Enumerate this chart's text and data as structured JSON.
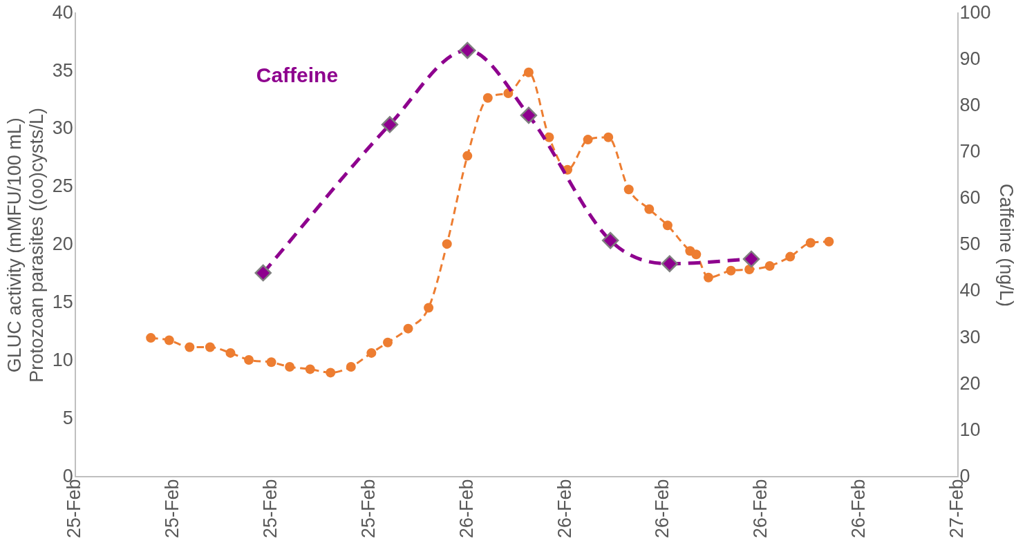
{
  "chart_data": {
    "type": "line",
    "ylabel": "GLUC activity (mMFU/100 mL)\nProtozoan parasites ((oo)cysts/L)",
    "y2label": "Caffeine (ng/L)",
    "xlim": [
      "--02-25T04:48",
      "--02-27T00:00"
    ],
    "xticks": [
      {
        "value": "--02-25T04:48",
        "label": "25-Feb"
      },
      {
        "value": "--02-25T09:36",
        "label": "25-Feb"
      },
      {
        "value": "--02-25T14:24",
        "label": "25-Feb"
      },
      {
        "value": "--02-25T19:12",
        "label": "25-Feb"
      },
      {
        "value": "--02-26T00:00",
        "label": "26-Feb"
      },
      {
        "value": "--02-26T04:48",
        "label": "26-Feb"
      },
      {
        "value": "--02-26T09:36",
        "label": "26-Feb"
      },
      {
        "value": "--02-26T14:24",
        "label": "26-Feb"
      },
      {
        "value": "--02-26T19:12",
        "label": "26-Feb"
      },
      {
        "value": "--02-27T00:00",
        "label": "27-Feb"
      }
    ],
    "ylim": [
      0,
      40
    ],
    "yticks": [
      0,
      5,
      10,
      15,
      20,
      25,
      30,
      35,
      40
    ],
    "y2lim": [
      0,
      100
    ],
    "y2ticks": [
      0,
      10,
      20,
      30,
      40,
      50,
      60,
      70,
      80,
      90,
      100
    ],
    "grid": false,
    "legend": false,
    "series": [
      {
        "color": "#ed7d31",
        "marker": "circle",
        "line_style": "dashed",
        "x": [
          "--02-25T08:30",
          "--02-25T09:24",
          "--02-25T10:24",
          "--02-25T11:24",
          "--02-25T12:24",
          "--02-25T13:18",
          "--02-25T14:24",
          "--02-25T15:18",
          "--02-25T16:18",
          "--02-25T17:18",
          "--02-25T18:18",
          "--02-25T19:18",
          "--02-25T20:06",
          "--02-25T21:06",
          "--02-25T22:06",
          "--02-25T23:00",
          "--02-26T00:00",
          "--02-26T01:00",
          "--02-26T02:00",
          "--02-26T03:00",
          "--02-26T04:00",
          "--02-26T04:54",
          "--02-26T05:54",
          "--02-26T06:54",
          "--02-26T07:54",
          "--02-26T08:54",
          "--02-26T09:48",
          "--02-26T10:54",
          "--02-26T11:12",
          "--02-26T11:48",
          "--02-26T12:54",
          "--02-26T13:48",
          "--02-26T14:48",
          "--02-26T15:48",
          "--02-26T16:48",
          "--02-26T17:42"
        ],
        "values": [
          12.0,
          11.8,
          11.2,
          11.2,
          10.7,
          10.1,
          9.9,
          9.5,
          9.3,
          9.0,
          9.5,
          10.7,
          11.6,
          12.8,
          14.6,
          20.1,
          27.7,
          32.7,
          33.1,
          34.9,
          29.3,
          26.5,
          29.1,
          29.3,
          24.8,
          23.1,
          21.7,
          19.5,
          19.2,
          17.2,
          17.8,
          17.9,
          18.2,
          19.0,
          20.2,
          20.3
        ]
      },
      {
        "name": "Caffeine",
        "color": "#8e008e",
        "marker": "diamond",
        "line_style": "dashed",
        "axis": "y2",
        "x": [
          "--02-25T14:00",
          "--02-25T20:12",
          "--02-26T00:00",
          "--02-26T03:00",
          "--02-26T07:00",
          "--02-26T09:54",
          "--02-26T13:54"
        ],
        "values": [
          44,
          76,
          92,
          78,
          51,
          46,
          47
        ]
      }
    ]
  }
}
